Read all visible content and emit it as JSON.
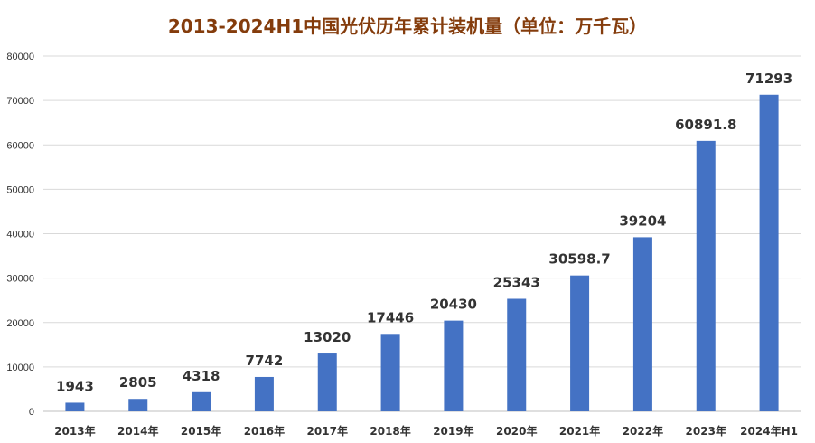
{
  "chart_data": {
    "type": "bar",
    "title": "2013-2024H1中国光伏历年累计装机量（单位：万千瓦）",
    "xlabel": "",
    "ylabel": "",
    "categories": [
      "2013年",
      "2014年",
      "2015年",
      "2016年",
      "2017年",
      "2018年",
      "2019年",
      "2020年",
      "2021年",
      "2022年",
      "2023年",
      "2024年H1"
    ],
    "values": [
      1943,
      2805,
      4318,
      7742,
      13020,
      17446,
      20430,
      25343,
      30598.7,
      39204,
      60891.8,
      71293
    ],
    "data_labels": [
      "1943",
      "2805",
      "4318",
      "7742",
      "13020",
      "17446",
      "20430",
      "25343",
      "30598.7",
      "39204",
      "60891.8",
      "71293"
    ],
    "ylim": [
      0,
      80000
    ],
    "yticks": [
      "0",
      "10000",
      "20000",
      "30000",
      "40000",
      "50000",
      "60000",
      "70000",
      "80000"
    ],
    "grid": true,
    "legend": "none",
    "colors": {
      "bar": "#4472c4",
      "title": "#843c0c",
      "grid": "#d9d9d9",
      "text": "#333333"
    }
  }
}
